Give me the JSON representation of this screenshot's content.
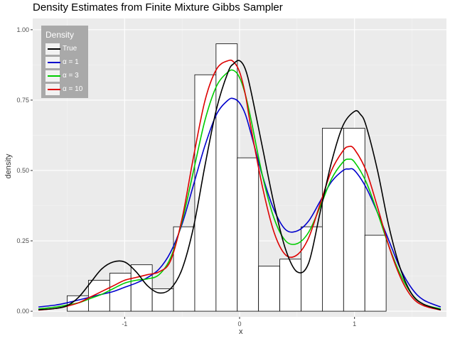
{
  "chart_data": {
    "type": "line",
    "title": "Density Estimates from Finite Mixture Gibbs Sampler",
    "xlabel": "x",
    "ylabel": "density",
    "xlim": [
      -1.8,
      1.8
    ],
    "ylim": [
      -0.02,
      1.04
    ],
    "grid": true,
    "legend_position": "top-left",
    "legend_title": "Density",
    "x_ticks": [
      {
        "value": -1,
        "label": "-1"
      },
      {
        "value": 0,
        "label": "0"
      },
      {
        "value": 1,
        "label": "1"
      }
    ],
    "y_ticks": [
      {
        "value": 0.0,
        "label": "0.00"
      },
      {
        "value": 0.25,
        "label": "0.25"
      },
      {
        "value": 0.5,
        "label": "0.50"
      },
      {
        "value": 0.75,
        "label": "0.75"
      },
      {
        "value": 1.0,
        "label": "1.00"
      }
    ],
    "histogram": {
      "bin_width": 0.185,
      "bins": [
        {
          "left": -1.5,
          "density": 0.055
        },
        {
          "left": -1.315,
          "density": 0.11
        },
        {
          "left": -1.13,
          "density": 0.135
        },
        {
          "left": -0.945,
          "density": 0.165
        },
        {
          "left": -0.76,
          "density": 0.08
        },
        {
          "left": -0.575,
          "density": 0.3
        },
        {
          "left": -0.39,
          "density": 0.84
        },
        {
          "left": -0.205,
          "density": 0.95
        },
        {
          "left": -0.02,
          "density": 0.545
        },
        {
          "left": 0.165,
          "density": 0.16
        },
        {
          "left": 0.35,
          "density": 0.185
        },
        {
          "left": 0.535,
          "density": 0.3
        },
        {
          "left": 0.72,
          "density": 0.65
        },
        {
          "left": 0.905,
          "density": 0.65
        },
        {
          "left": 1.09,
          "density": 0.27
        }
      ]
    },
    "series": [
      {
        "name": "True",
        "label": "True",
        "color": "#000000",
        "x": [
          -1.75,
          -1.6,
          -1.5,
          -1.4,
          -1.3,
          -1.2,
          -1.1,
          -1.0,
          -0.9,
          -0.8,
          -0.7,
          -0.6,
          -0.5,
          -0.4,
          -0.3,
          -0.2,
          -0.1,
          -0.05,
          0.0,
          0.05,
          0.1,
          0.2,
          0.3,
          0.4,
          0.5,
          0.6,
          0.7,
          0.8,
          0.9,
          1.0,
          1.05,
          1.1,
          1.2,
          1.3,
          1.4,
          1.5,
          1.6,
          1.75
        ],
        "y": [
          0.005,
          0.01,
          0.02,
          0.05,
          0.1,
          0.15,
          0.175,
          0.175,
          0.14,
          0.09,
          0.065,
          0.08,
          0.15,
          0.3,
          0.52,
          0.72,
          0.85,
          0.88,
          0.89,
          0.86,
          0.78,
          0.58,
          0.38,
          0.22,
          0.14,
          0.17,
          0.35,
          0.53,
          0.66,
          0.71,
          0.7,
          0.66,
          0.5,
          0.3,
          0.15,
          0.06,
          0.025,
          0.005
        ]
      },
      {
        "name": "alpha=1",
        "label": "α = 1",
        "color": "#0000cc",
        "x": [
          -1.75,
          -1.6,
          -1.5,
          -1.4,
          -1.3,
          -1.2,
          -1.1,
          -1.0,
          -0.9,
          -0.8,
          -0.7,
          -0.6,
          -0.5,
          -0.4,
          -0.3,
          -0.2,
          -0.1,
          -0.05,
          0.0,
          0.05,
          0.1,
          0.2,
          0.3,
          0.4,
          0.5,
          0.6,
          0.7,
          0.8,
          0.9,
          0.95,
          1.0,
          1.1,
          1.2,
          1.3,
          1.4,
          1.5,
          1.6,
          1.75
        ],
        "y": [
          0.015,
          0.022,
          0.03,
          0.04,
          0.05,
          0.06,
          0.07,
          0.085,
          0.1,
          0.12,
          0.15,
          0.21,
          0.31,
          0.45,
          0.59,
          0.7,
          0.75,
          0.755,
          0.74,
          0.7,
          0.63,
          0.48,
          0.36,
          0.29,
          0.285,
          0.32,
          0.39,
          0.46,
          0.5,
          0.505,
          0.5,
          0.44,
          0.35,
          0.25,
          0.15,
          0.08,
          0.04,
          0.015
        ]
      },
      {
        "name": "alpha=3",
        "label": "α = 3",
        "color": "#00cc00",
        "x": [
          -1.75,
          -1.6,
          -1.5,
          -1.4,
          -1.3,
          -1.2,
          -1.1,
          -1.0,
          -0.9,
          -0.8,
          -0.7,
          -0.6,
          -0.5,
          -0.4,
          -0.3,
          -0.2,
          -0.1,
          -0.05,
          0.0,
          0.05,
          0.1,
          0.2,
          0.3,
          0.4,
          0.5,
          0.6,
          0.7,
          0.8,
          0.9,
          0.95,
          1.0,
          1.1,
          1.2,
          1.3,
          1.4,
          1.5,
          1.6,
          1.75
        ],
        "y": [
          0.008,
          0.015,
          0.022,
          0.03,
          0.045,
          0.06,
          0.08,
          0.1,
          0.11,
          0.115,
          0.13,
          0.19,
          0.32,
          0.5,
          0.68,
          0.8,
          0.85,
          0.855,
          0.83,
          0.77,
          0.68,
          0.48,
          0.33,
          0.25,
          0.24,
          0.28,
          0.37,
          0.47,
          0.53,
          0.54,
          0.53,
          0.46,
          0.35,
          0.23,
          0.13,
          0.06,
          0.025,
          0.008
        ]
      },
      {
        "name": "alpha=10",
        "label": "α = 10",
        "color": "#dd0000",
        "x": [
          -1.75,
          -1.6,
          -1.5,
          -1.4,
          -1.3,
          -1.2,
          -1.1,
          -1.0,
          -0.9,
          -0.8,
          -0.7,
          -0.6,
          -0.5,
          -0.4,
          -0.3,
          -0.2,
          -0.1,
          -0.05,
          0.0,
          0.05,
          0.1,
          0.2,
          0.3,
          0.4,
          0.5,
          0.6,
          0.7,
          0.8,
          0.9,
          0.95,
          1.0,
          1.1,
          1.2,
          1.3,
          1.4,
          1.5,
          1.6,
          1.75
        ],
        "y": [
          0.004,
          0.01,
          0.018,
          0.03,
          0.05,
          0.07,
          0.09,
          0.11,
          0.12,
          0.13,
          0.14,
          0.18,
          0.33,
          0.55,
          0.75,
          0.86,
          0.89,
          0.885,
          0.85,
          0.77,
          0.65,
          0.44,
          0.28,
          0.2,
          0.2,
          0.26,
          0.38,
          0.5,
          0.57,
          0.585,
          0.575,
          0.5,
          0.37,
          0.23,
          0.12,
          0.05,
          0.02,
          0.004
        ]
      }
    ]
  }
}
